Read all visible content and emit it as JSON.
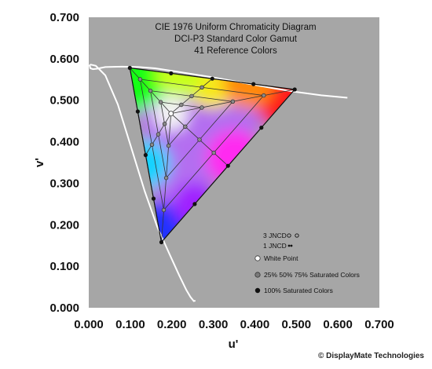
{
  "chart_data": {
    "type": "scatter",
    "title_lines": [
      "CIE 1976 Uniform Chromaticity Diagram",
      "DCI-P3 Standard Color Gamut",
      "41 Reference Colors"
    ],
    "xlabel": "u'",
    "ylabel": "v'",
    "xlim": [
      0.0,
      0.7
    ],
    "ylim": [
      0.0,
      0.7
    ],
    "x_ticks": [
      "0.000",
      "0.100",
      "0.200",
      "0.300",
      "0.400",
      "0.500",
      "0.600",
      "0.700"
    ],
    "y_ticks": [
      "0.000",
      "0.100",
      "0.200",
      "0.300",
      "0.400",
      "0.500",
      "0.600",
      "0.700"
    ],
    "grid": false,
    "plot_background": "#a6a6a6",
    "primaries": {
      "red": {
        "u": 0.496,
        "v": 0.526
      },
      "green": {
        "u": 0.099,
        "v": 0.578
      },
      "blue": {
        "u": 0.175,
        "v": 0.158
      }
    },
    "white_point": {
      "u": 0.198,
      "v": 0.468
    },
    "saturation_levels": [
      0.25,
      0.5,
      0.75,
      1.0
    ],
    "spectral_locus": [
      [
        0.257,
        0.017
      ],
      [
        0.253,
        0.016
      ],
      [
        0.245,
        0.026
      ],
      [
        0.235,
        0.043
      ],
      [
        0.218,
        0.078
      ],
      [
        0.195,
        0.128
      ],
      [
        0.165,
        0.195
      ],
      [
        0.135,
        0.28
      ],
      [
        0.102,
        0.387
      ],
      [
        0.07,
        0.49
      ],
      [
        0.04,
        0.56
      ],
      [
        0.017,
        0.583
      ],
      [
        0.005,
        0.586
      ],
      [
        0.002,
        0.584
      ],
      [
        0.004,
        0.577
      ],
      [
        0.01,
        0.575
      ],
      [
        0.02,
        0.576
      ],
      [
        0.04,
        0.58
      ],
      [
        0.08,
        0.581
      ],
      [
        0.12,
        0.58
      ],
      [
        0.16,
        0.577
      ],
      [
        0.2,
        0.571
      ],
      [
        0.25,
        0.563
      ],
      [
        0.3,
        0.555
      ],
      [
        0.35,
        0.546
      ],
      [
        0.4,
        0.537
      ],
      [
        0.45,
        0.528
      ],
      [
        0.5,
        0.52
      ],
      [
        0.56,
        0.512
      ],
      [
        0.623,
        0.506
      ]
    ],
    "legend": {
      "jncd_3": "3 JNCD",
      "jncd_1": "1 JNCD",
      "white_point": "White Point",
      "saturated": "25% 50% 75% Saturated Colors",
      "full": "100% Saturated Colors"
    },
    "credit": "© DisplayMate Technologies"
  }
}
